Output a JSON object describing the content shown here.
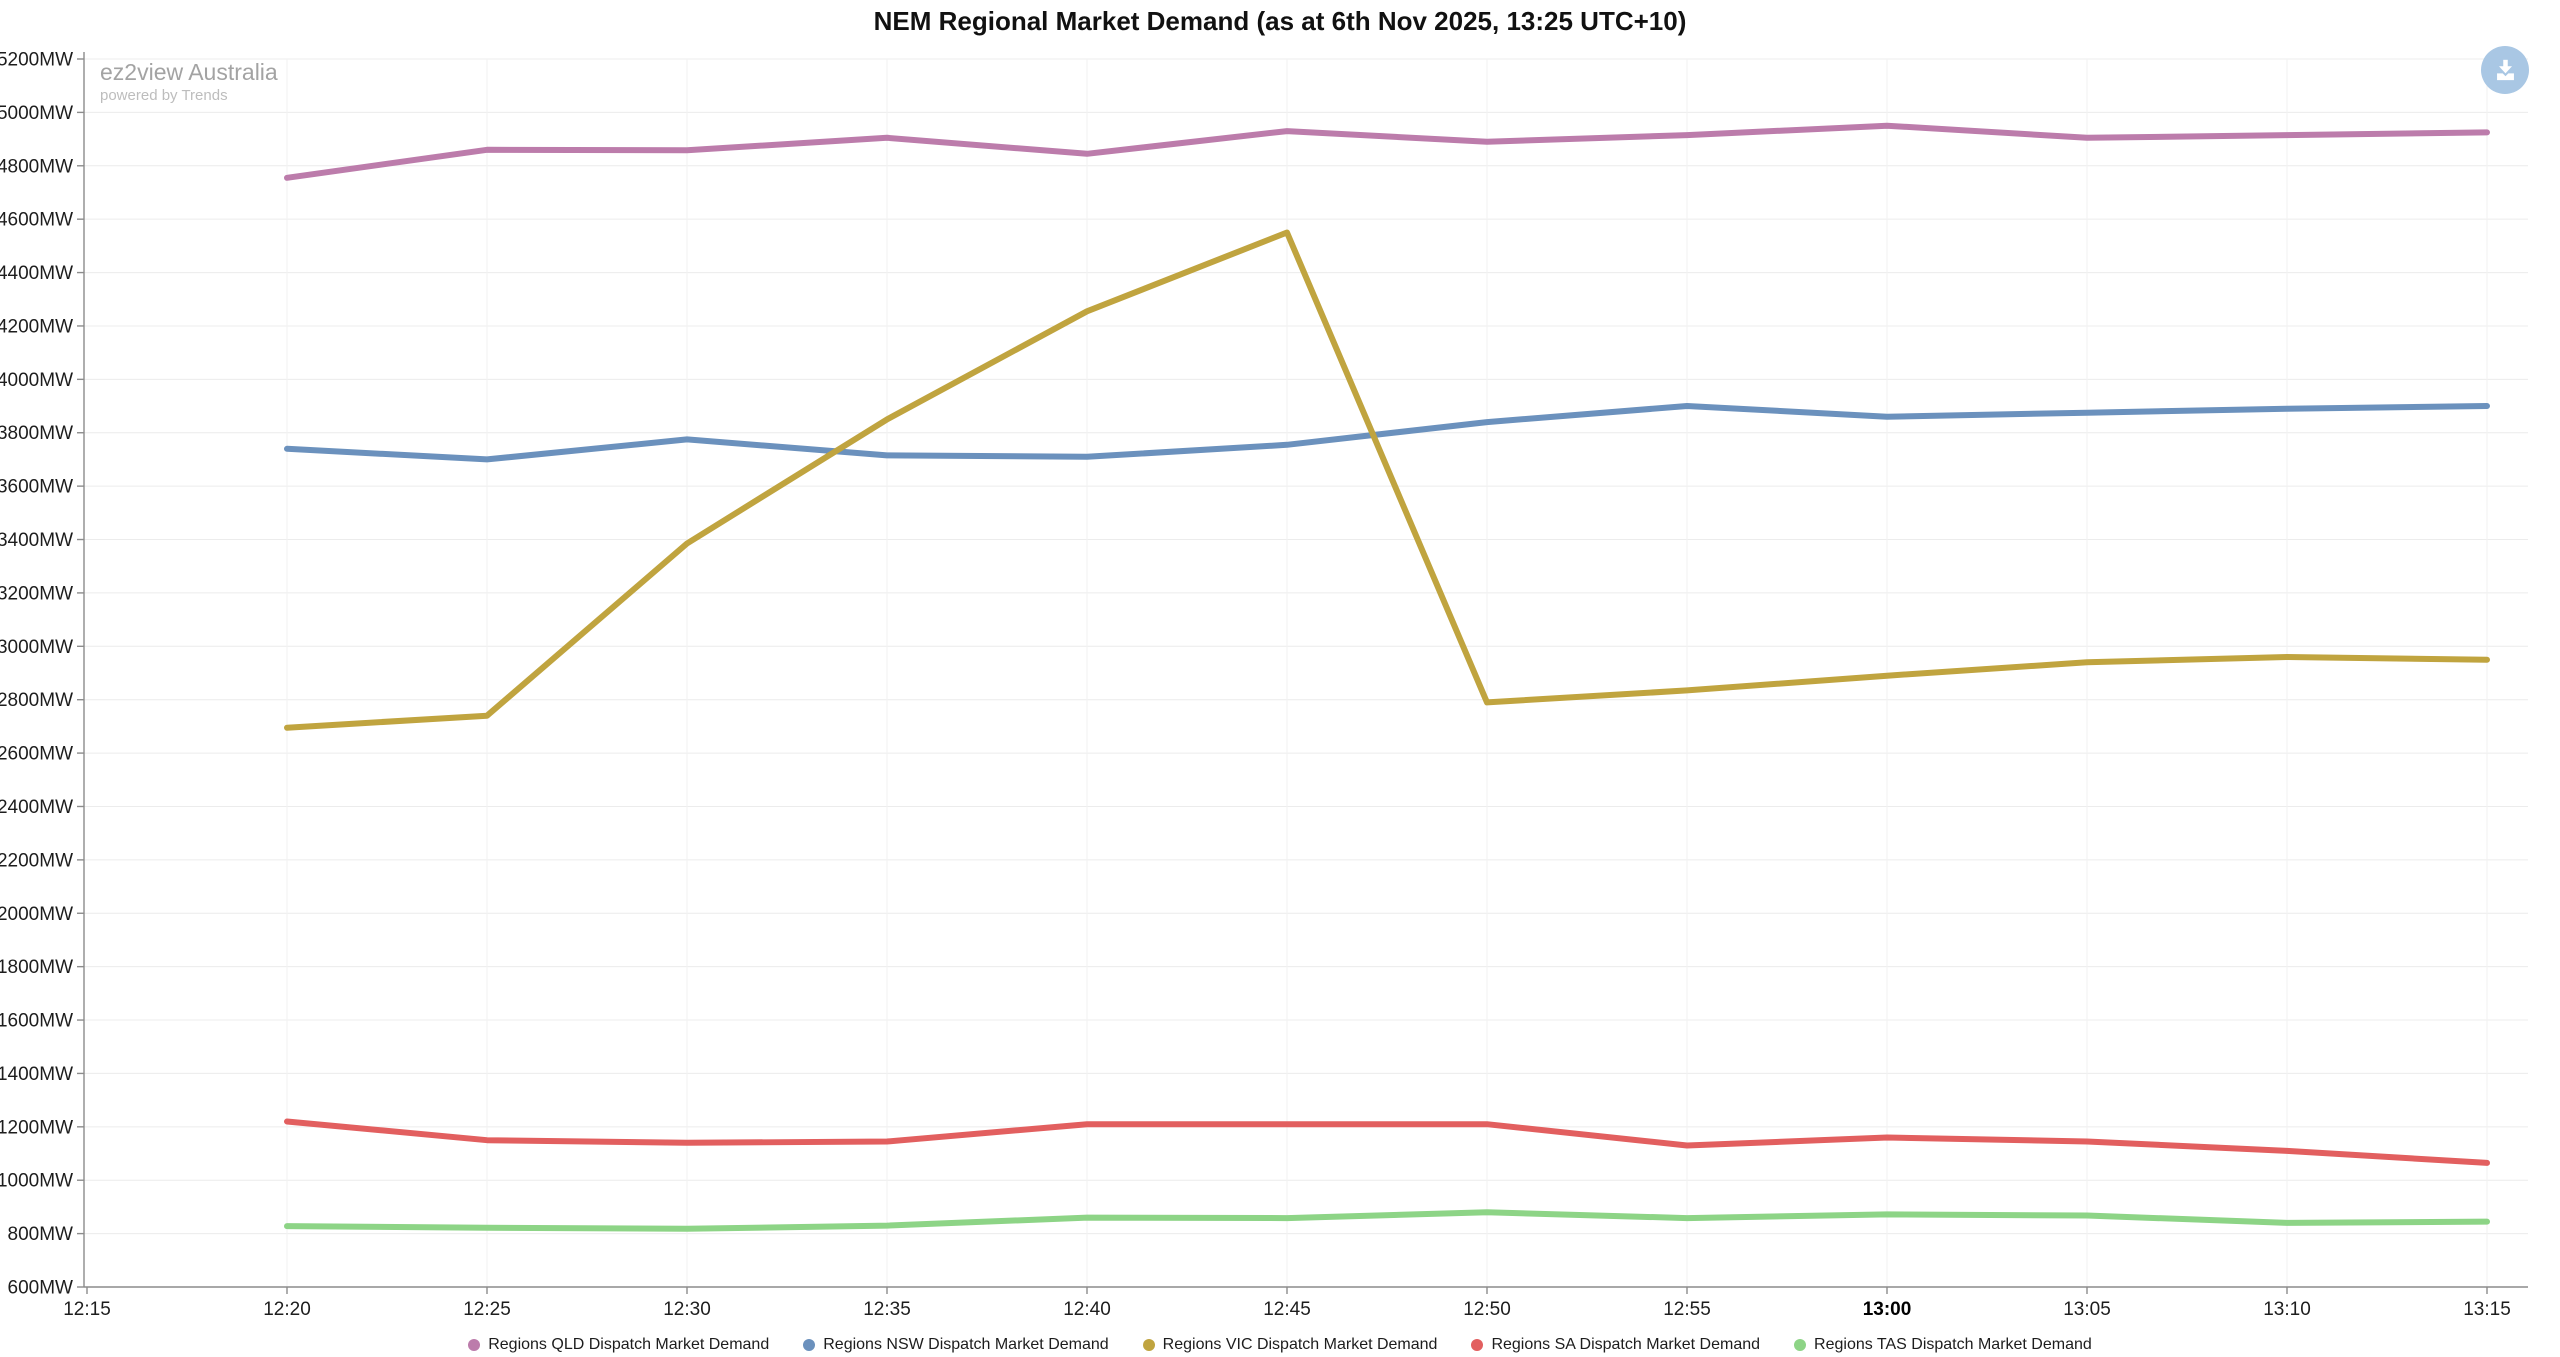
{
  "header": {
    "title": "NEM Regional Market Demand (as at 6th Nov 2025, 13:25 UTC+10)"
  },
  "watermark": {
    "brand": "ez2view Australia",
    "sub": "powered by Trends"
  },
  "toolbar": {
    "download_icon": "download-icon"
  },
  "chart_data": {
    "type": "line",
    "title": "NEM Regional Market Demand (as at 6th Nov 2025, 13:25 UTC+10)",
    "x": [
      "12:20",
      "12:25",
      "12:30",
      "12:35",
      "12:40",
      "12:45",
      "12:50",
      "12:55",
      "13:00",
      "13:05",
      "13:10",
      "13:15"
    ],
    "x_axis_ticks": [
      "12:15",
      "12:20",
      "12:25",
      "12:30",
      "12:35",
      "12:40",
      "12:45",
      "12:50",
      "12:55",
      "13:00",
      "13:05",
      "13:10",
      "13:15"
    ],
    "bold_x_tick": "13:00",
    "y_unit": "MW",
    "ylim": [
      600,
      5200
    ],
    "y_tick_step": 200,
    "grid": true,
    "legend_position": "bottom",
    "series": [
      {
        "name": "Regions QLD Dispatch Market Demand",
        "color": "#bc7cab",
        "values": [
          4755,
          4860,
          4858,
          4905,
          4845,
          4930,
          4890,
          4915,
          4950,
          4905,
          4915,
          4925
        ]
      },
      {
        "name": "Regions NSW Dispatch Market Demand",
        "color": "#6b91bd",
        "values": [
          3740,
          3700,
          3775,
          3715,
          3710,
          3755,
          3840,
          3900,
          3860,
          3875,
          3890,
          3900
        ]
      },
      {
        "name": "Regions VIC Dispatch Market Demand",
        "color": "#c0a43f",
        "values": [
          2695,
          2740,
          3385,
          3850,
          4255,
          4550,
          2790,
          2835,
          2890,
          2940,
          2960,
          2950
        ]
      },
      {
        "name": "Regions SA Dispatch Market Demand",
        "color": "#e25f5f",
        "values": [
          1220,
          1150,
          1140,
          1145,
          1210,
          1210,
          1210,
          1130,
          1160,
          1145,
          1110,
          1065
        ]
      },
      {
        "name": "Regions TAS Dispatch Market Demand",
        "color": "#8dd486",
        "values": [
          828,
          822,
          818,
          830,
          860,
          858,
          880,
          858,
          872,
          868,
          840,
          845
        ]
      }
    ]
  }
}
